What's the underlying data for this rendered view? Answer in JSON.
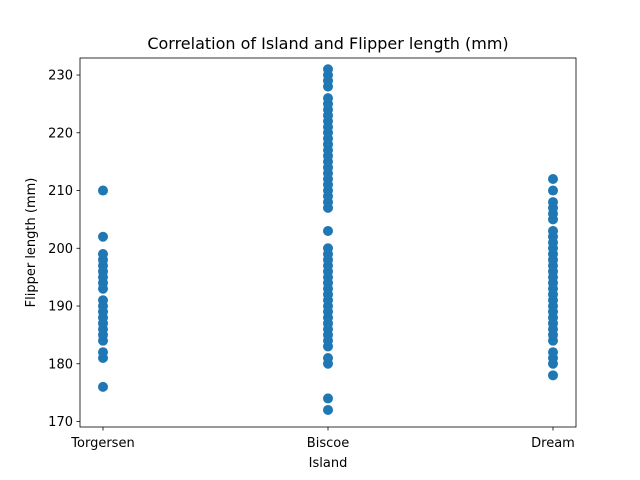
{
  "chart_data": {
    "type": "scatter",
    "title": "Correlation of Island and Flipper length (mm)",
    "xlabel": "Island",
    "ylabel": "Flipper length (mm)",
    "categories": [
      "Torgersen",
      "Biscoe",
      "Dream"
    ],
    "yticks": [
      170,
      180,
      190,
      200,
      210,
      220,
      230
    ],
    "ylim": [
      169.05,
      232.95
    ],
    "grid": false,
    "legend": "none",
    "marker_color": "#1f77b4",
    "series": [
      {
        "category": "Torgersen",
        "values": [
          176,
          181,
          182,
          184,
          185,
          186,
          187,
          188,
          189,
          190,
          191,
          193,
          194,
          195,
          196,
          197,
          198,
          199,
          202,
          210
        ]
      },
      {
        "category": "Biscoe",
        "values": [
          172,
          174,
          180,
          181,
          183,
          184,
          185,
          186,
          187,
          188,
          189,
          190,
          191,
          192,
          193,
          194,
          195,
          196,
          197,
          198,
          199,
          200,
          203,
          207,
          208,
          209,
          210,
          211,
          212,
          213,
          214,
          215,
          216,
          217,
          218,
          219,
          220,
          221,
          222,
          223,
          224,
          225,
          226,
          228,
          229,
          230,
          231
        ]
      },
      {
        "category": "Dream",
        "values": [
          178,
          180,
          181,
          182,
          184,
          185,
          186,
          187,
          188,
          189,
          190,
          191,
          192,
          193,
          194,
          195,
          196,
          197,
          198,
          199,
          200,
          201,
          202,
          203,
          205,
          206,
          207,
          208,
          210,
          212
        ]
      }
    ]
  }
}
